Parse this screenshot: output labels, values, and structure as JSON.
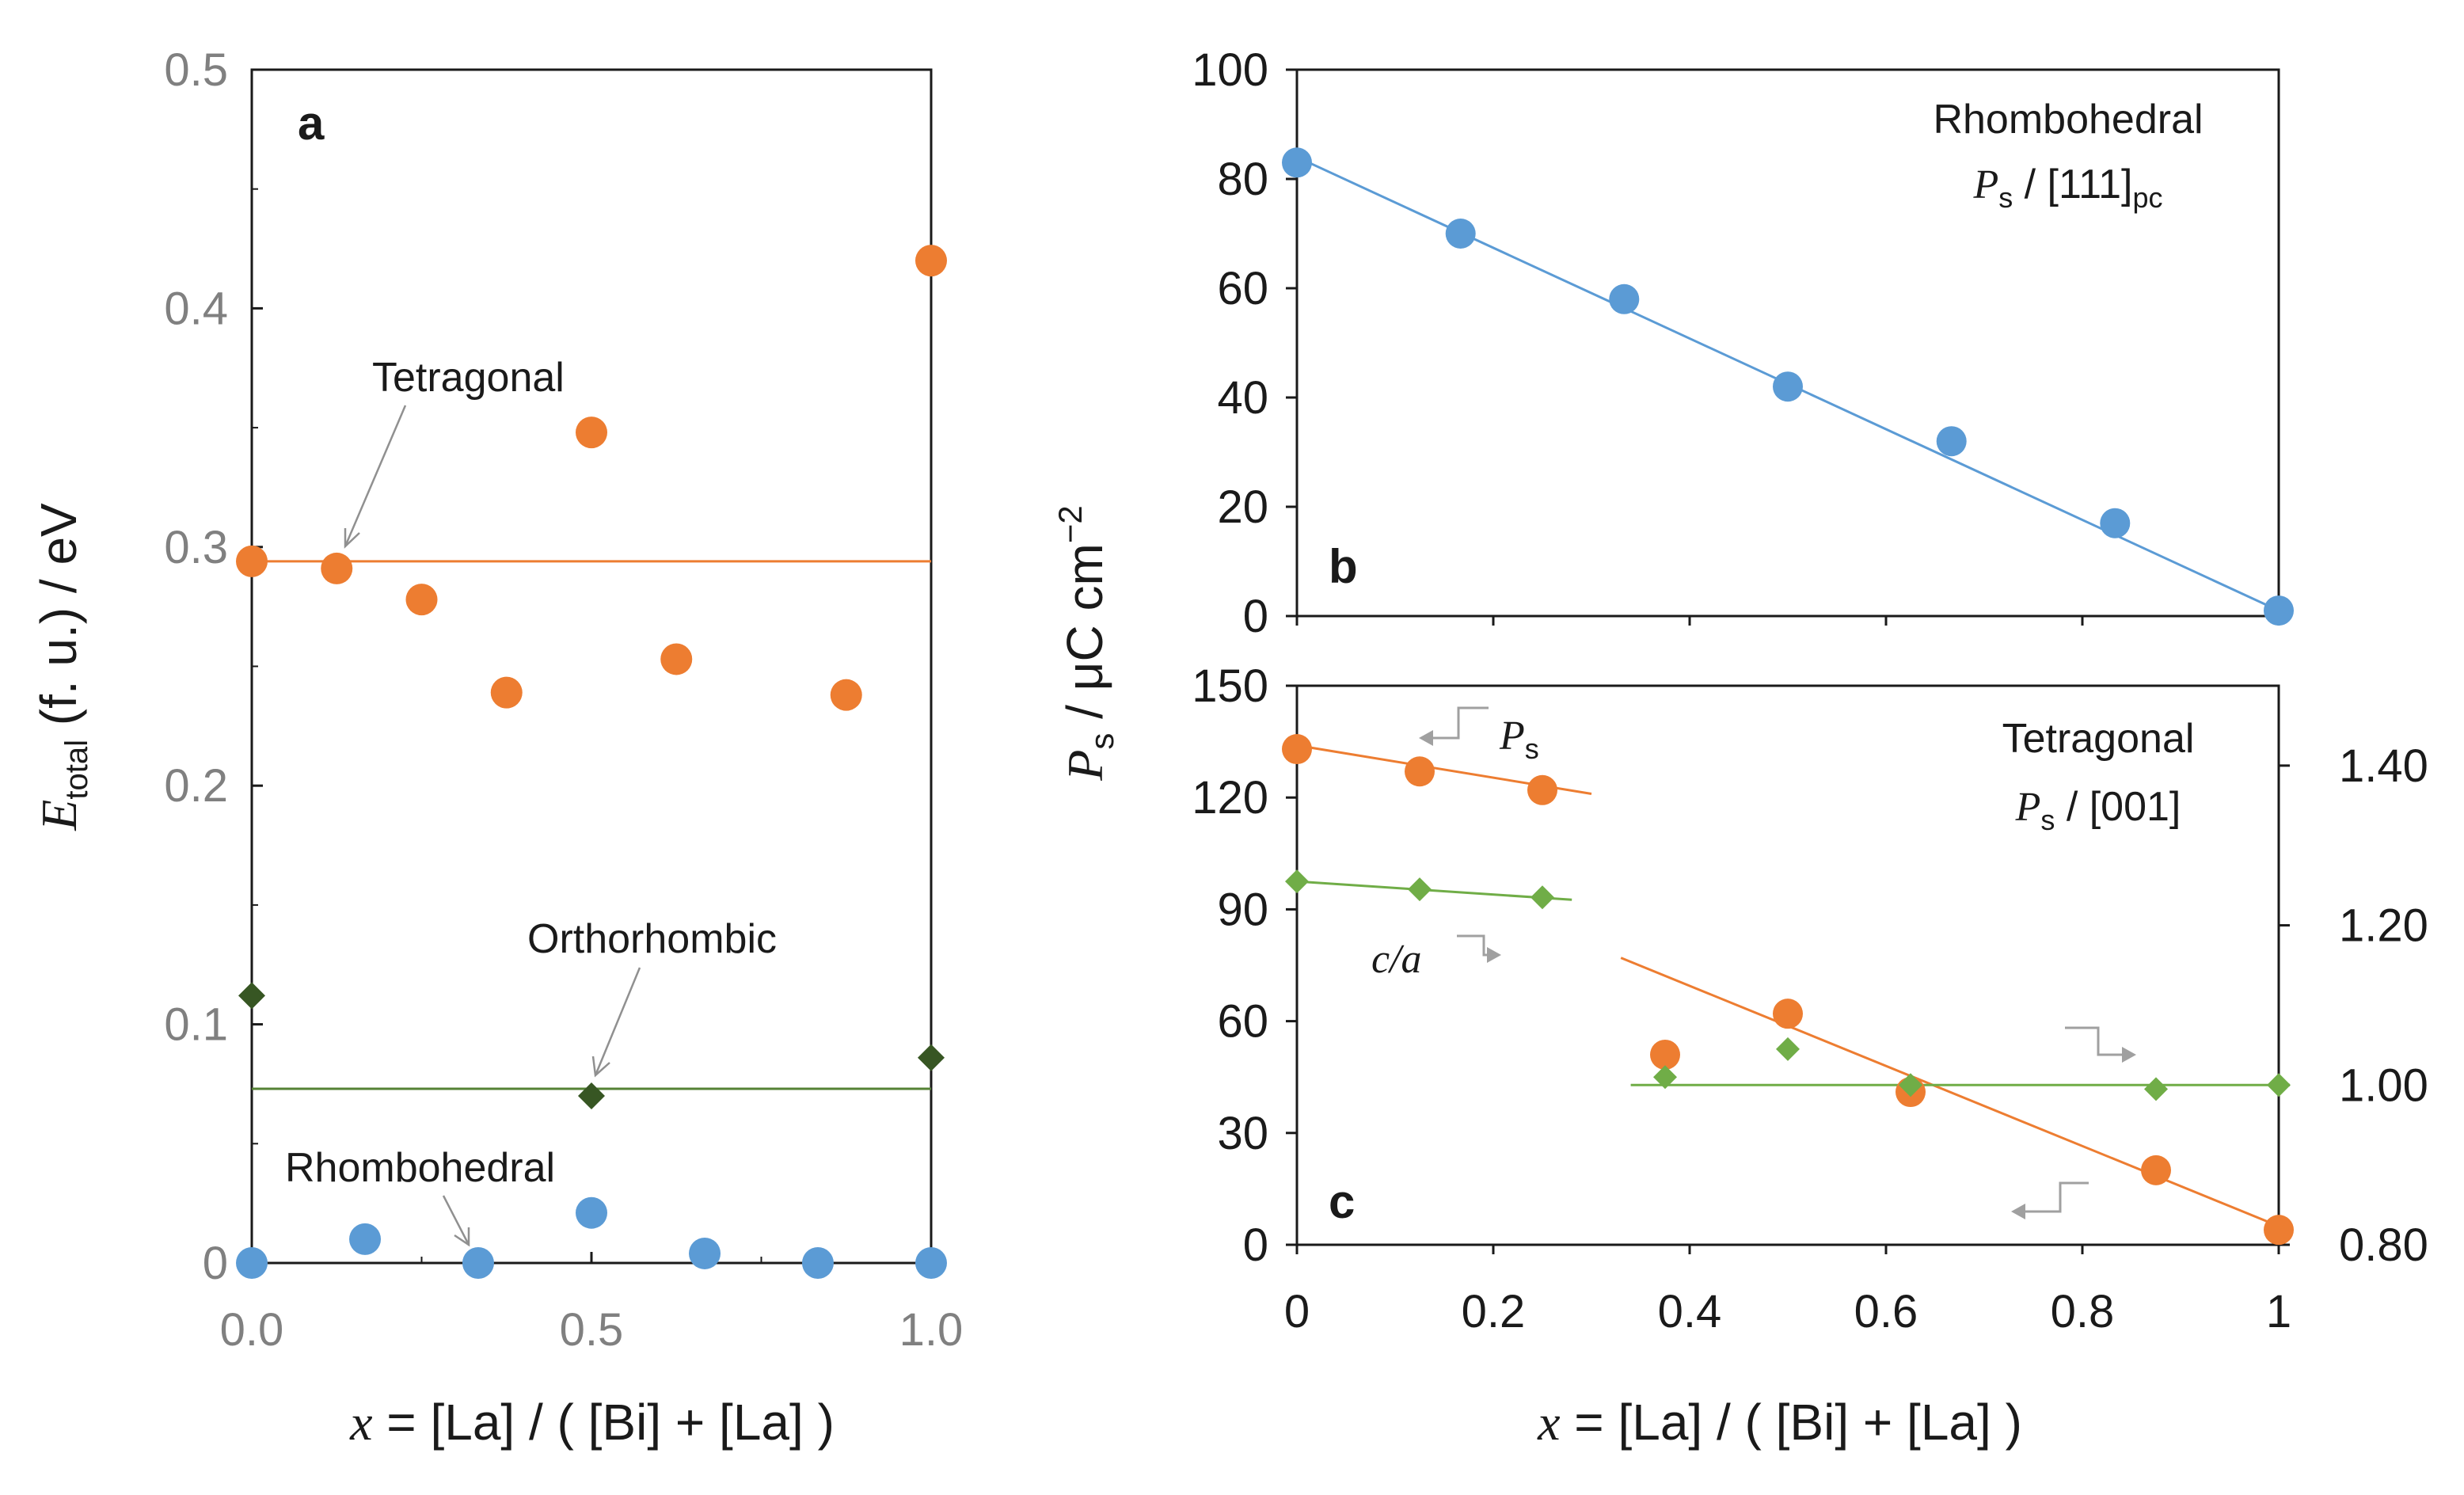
{
  "colors": {
    "orange": "#ED7D31",
    "blue": "#5B9BD5",
    "dark_green": "#375623",
    "light_green": "#70AD47",
    "green_line": "#548235",
    "axis": "#1a1a1a",
    "tick_grey": "#808080",
    "arrow": "#a0a0a0"
  },
  "icons": {
    "ref_arrow": "bent-arrow-icon"
  },
  "chart_data": [
    {
      "id": "a",
      "type": "scatter",
      "panel_label": "a",
      "ylabel_main": "E",
      "ylabel_sub": "total",
      "ylabel_rest": " (f. u.) / eV",
      "xlabel_var": "x",
      "xlabel_rest": " = [La] / ( [Bi] + [La] )",
      "xlim": [
        0,
        1
      ],
      "ylim": [
        0,
        0.5
      ],
      "xticks": [
        0,
        0.5,
        1
      ],
      "xtick_labels": [
        "0.0",
        "0.5",
        "1.0"
      ],
      "yticks": [
        0,
        0.1,
        0.2,
        0.3,
        0.4,
        0.5
      ],
      "ytick_labels": [
        "0",
        "0.1",
        "0.2",
        "0.3",
        "0.4",
        "0.5"
      ],
      "series": [
        {
          "name": "Tetragonal",
          "marker": "circle",
          "color": "#ED7D31",
          "x": [
            0,
            0.125,
            0.25,
            0.375,
            0.5,
            0.625,
            0.875,
            1.0
          ],
          "y": [
            0.294,
            0.291,
            0.278,
            0.239,
            0.348,
            0.253,
            0.238,
            0.42
          ],
          "ref_line": 0.294
        },
        {
          "name": "Orthorhombic",
          "marker": "diamond",
          "color": "#375623",
          "x": [
            0,
            0.5,
            1.0
          ],
          "y": [
            0.112,
            0.07,
            0.086
          ],
          "ref_line": 0.073
        },
        {
          "name": "Rhombohedral",
          "marker": "circle",
          "color": "#5B9BD5",
          "x": [
            0,
            0.1667,
            0.3333,
            0.5,
            0.6667,
            0.8333,
            1.0
          ],
          "y": [
            0,
            0.01,
            0,
            0.021,
            0.004,
            0,
            0
          ],
          "ref_line": null
        }
      ],
      "annotations": {
        "tetragonal": "Tetragonal",
        "orthorhombic": "Orthorhombic",
        "rhombohedral": "Rhombohedral"
      }
    },
    {
      "id": "b",
      "type": "scatter",
      "panel_label": "b",
      "title_line1": "Rhombohedral",
      "title_ps": "P",
      "title_ps_sub": "s",
      "title_dir": " / [111]",
      "title_dir_sub": "pc",
      "xlim": [
        0,
        1
      ],
      "ylim": [
        0,
        100
      ],
      "yticks": [
        0,
        20,
        40,
        60,
        80,
        100
      ],
      "ytick_labels": [
        "0",
        "20",
        "40",
        "60",
        "80",
        "100"
      ],
      "series": [
        {
          "name": "Ps rhombohedral",
          "marker": "circle",
          "color": "#5B9BD5",
          "x": [
            0,
            0.1667,
            0.3333,
            0.5,
            0.6667,
            0.8333,
            1.0
          ],
          "y": [
            83,
            70,
            58,
            42,
            32,
            17,
            1
          ],
          "fit": {
            "x": [
              0,
              1
            ],
            "y": [
              84,
              1
            ]
          }
        }
      ]
    },
    {
      "id": "c",
      "type": "scatter",
      "panel_label": "c",
      "title_line1": "Tetragonal",
      "title_ps": "P",
      "title_ps_sub": "s",
      "title_dir": " / [001]",
      "xlabel_var": "x",
      "xlabel_rest": " = [La] / ( [Bi] + [La] )",
      "shared_ylabel_p": "P",
      "shared_ylabel_sub": "s",
      "shared_ylabel_rest": " / μC cm",
      "shared_ylabel_sup": "−2",
      "xlim": [
        0,
        1
      ],
      "ylim": [
        0,
        150
      ],
      "y2lim": [
        0.8,
        1.5
      ],
      "xticks": [
        0,
        0.2,
        0.4,
        0.6,
        0.8,
        1
      ],
      "xtick_labels": [
        "0",
        "0.2",
        "0.4",
        "0.6",
        "0.8",
        "1"
      ],
      "yticks": [
        0,
        30,
        60,
        90,
        120,
        150
      ],
      "ytick_labels": [
        "0",
        "30",
        "60",
        "90",
        "120",
        "150"
      ],
      "y2ticks": [
        0.8,
        1.0,
        1.2,
        1.4
      ],
      "y2tick_labels": [
        "0.80",
        "1.00",
        "1.20",
        "1.40"
      ],
      "series": [
        {
          "name": "Ps",
          "axis": "left",
          "marker": "circle",
          "color": "#ED7D31",
          "x": [
            0,
            0.125,
            0.25,
            0.375,
            0.5,
            0.625,
            0.875,
            1.0
          ],
          "y": [
            133,
            127,
            122,
            51,
            62,
            41,
            20,
            4
          ],
          "fits": [
            {
              "x": [
                0,
                0.3
              ],
              "y": [
                134,
                121
              ]
            },
            {
              "x": [
                0.33,
                1.0
              ],
              "y": [
                77,
                5
              ]
            }
          ]
        },
        {
          "name": "c/a",
          "axis": "right",
          "marker": "diamond",
          "color": "#70AD47",
          "x": [
            0,
            0.125,
            0.25,
            0.375,
            0.5,
            0.625,
            0.875,
            1.0
          ],
          "y": [
            1.255,
            1.245,
            1.235,
            1.01,
            1.045,
            1.0,
            0.995,
            1.0
          ],
          "fits": [
            {
              "x": [
                0,
                0.28
              ],
              "y": [
                1.255,
                1.232
              ]
            },
            {
              "x": [
                0.34,
                1.0
              ],
              "y": [
                1.0,
                1.0
              ]
            }
          ]
        }
      ],
      "annotations": {
        "ps_var": "P",
        "ps_sub": "s",
        "ca": "c/a"
      }
    }
  ]
}
